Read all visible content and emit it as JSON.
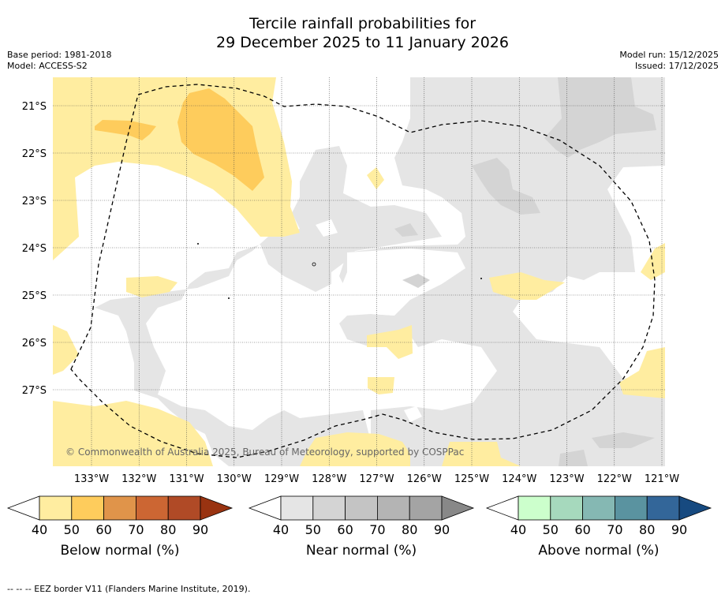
{
  "title": {
    "line1": "Tercile rainfall probabilities for",
    "line2": "29 December 2025 to 11 January 2026"
  },
  "meta": {
    "base_period": "Base period: 1981-2018",
    "model": "Model: ACCESS-S2",
    "model_run": "Model run: 15/12/2025",
    "issued": "Issued: 17/12/2025"
  },
  "map": {
    "copyright": "© Commonwealth of Australia 2025, Bureau of Meteorology, supported by COSPPac",
    "lat_labels": [
      "21°S",
      "22°S",
      "23°S",
      "24°S",
      "25°S",
      "26°S",
      "27°S"
    ],
    "lon_labels": [
      "133°W",
      "132°W",
      "131°W",
      "130°W",
      "129°W",
      "128°W",
      "127°W",
      "126°W",
      "125°W",
      "124°W",
      "123°W",
      "122°W",
      "121°W"
    ]
  },
  "legends": [
    {
      "name": "below",
      "label": "Below normal (%)",
      "ticks": [
        "40",
        "50",
        "60",
        "70",
        "80",
        "90"
      ],
      "colors": [
        "#ffeda0",
        "#fecc5c",
        "#e0944a",
        "#cc6633",
        "#b04a26",
        "#993311"
      ]
    },
    {
      "name": "near",
      "label": "Near normal (%)",
      "ticks": [
        "40",
        "50",
        "60",
        "70",
        "80",
        "90"
      ],
      "colors": [
        "#e5e5e5",
        "#d4d4d4",
        "#c4c4c4",
        "#b4b4b4",
        "#a4a4a4",
        "#888888"
      ]
    },
    {
      "name": "above",
      "label": "Above normal (%)",
      "ticks": [
        "40",
        "50",
        "60",
        "70",
        "80",
        "90"
      ],
      "colors": [
        "#ccffcc",
        "#a6d9bd",
        "#85b8b3",
        "#5a93a0",
        "#336699",
        "#174a80"
      ]
    }
  ],
  "footnote": "--  --  -- EEZ border V11 (Flanders Marine Institute, 2019).",
  "colors": {
    "near_normal_light": "#e5e5e5",
    "near_normal_mid": "#d4d4d4",
    "below_normal_light": "#ffeda0",
    "below_normal_mid": "#fecc5c"
  }
}
